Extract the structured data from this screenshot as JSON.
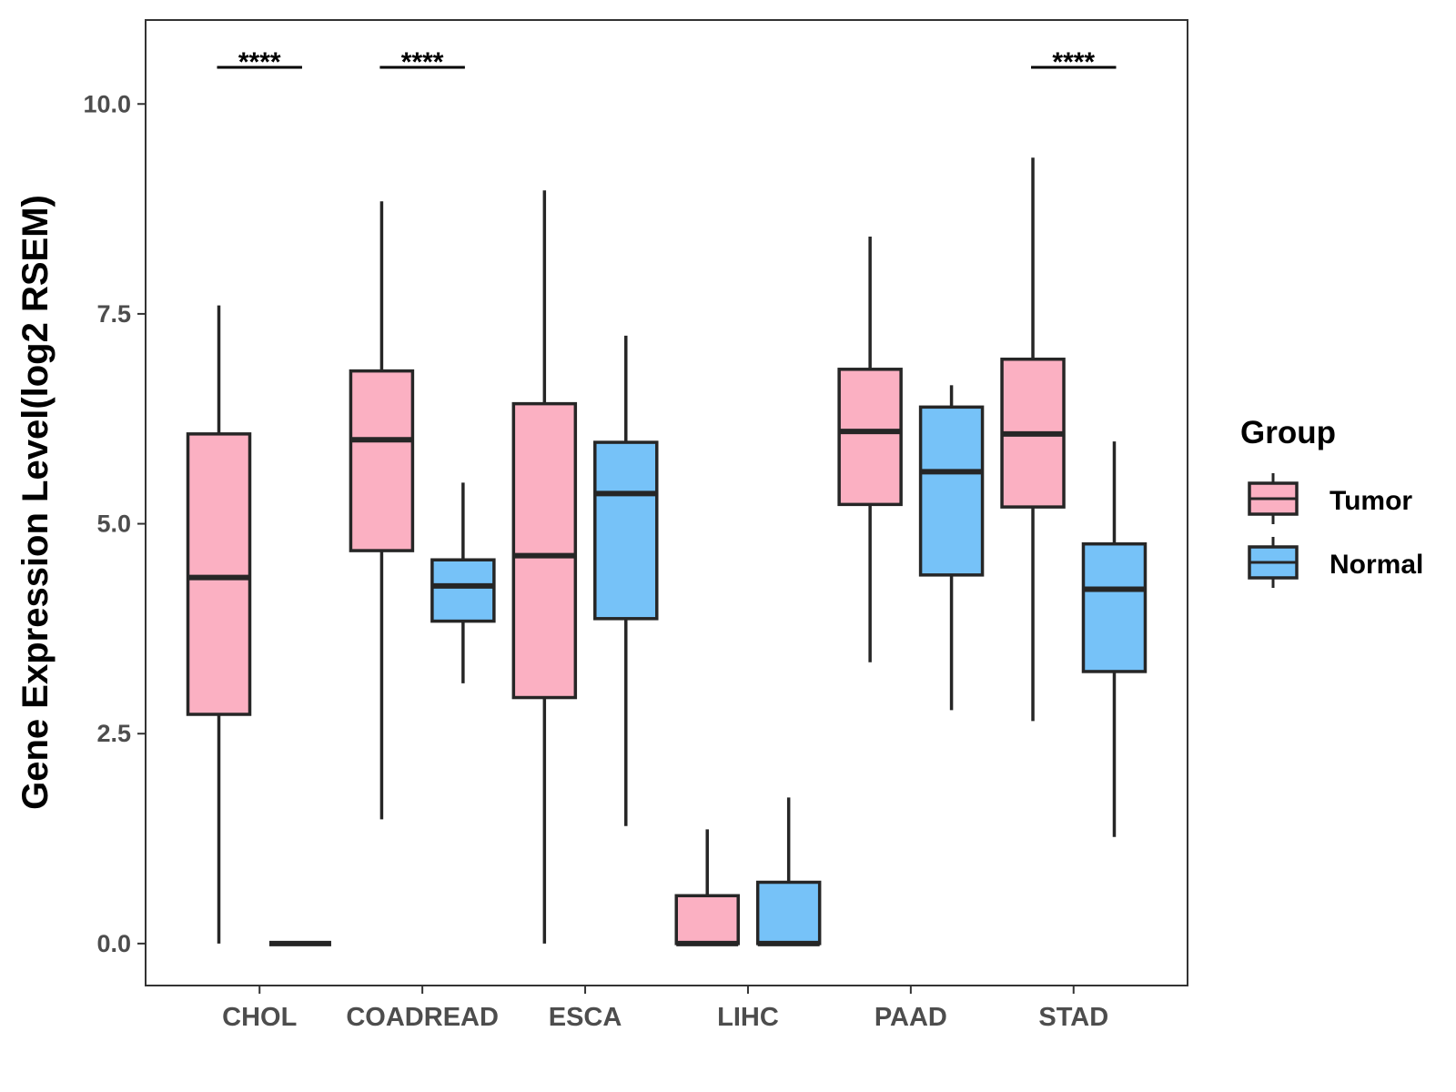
{
  "chart_data": {
    "type": "boxplot",
    "title": "",
    "xlabel": "",
    "ylabel": "Gene Expression Level(log2 RSEM)",
    "ylim": [
      -0.5,
      11.0
    ],
    "yticks": [
      0.0,
      2.5,
      5.0,
      7.5,
      10.0
    ],
    "ytick_labels": [
      "0.0",
      "2.5",
      "5.0",
      "7.5",
      "10.0"
    ],
    "categories": [
      "CHOL",
      "COADREAD",
      "ESCA",
      "LIHC",
      "PAAD",
      "STAD"
    ],
    "legend": {
      "title": "Group",
      "position": "right",
      "entries": [
        {
          "name": "Tumor",
          "color": "#fbb0c2"
        },
        {
          "name": "Normal",
          "color": "#76c2f8"
        }
      ]
    },
    "series": [
      {
        "name": "Tumor",
        "color": "#fbb0c2",
        "boxes": [
          {
            "category": "CHOL",
            "whisker_low": 0.0,
            "q1": 2.73,
            "median": 4.36,
            "q3": 6.07,
            "whisker_high": 7.6
          },
          {
            "category": "COADREAD",
            "whisker_low": 1.48,
            "q1": 4.68,
            "median": 6.0,
            "q3": 6.82,
            "whisker_high": 8.84
          },
          {
            "category": "ESCA",
            "whisker_low": 0.0,
            "q1": 2.93,
            "median": 4.62,
            "q3": 6.43,
            "whisker_high": 8.97
          },
          {
            "category": "LIHC",
            "whisker_low": 0.0,
            "q1": 0.0,
            "median": 0.0,
            "q3": 0.57,
            "whisker_high": 1.36
          },
          {
            "category": "PAAD",
            "whisker_low": 3.35,
            "q1": 5.23,
            "median": 6.1,
            "q3": 6.84,
            "whisker_high": 8.42
          },
          {
            "category": "STAD",
            "whisker_low": 2.65,
            "q1": 5.2,
            "median": 6.07,
            "q3": 6.96,
            "whisker_high": 9.36
          }
        ]
      },
      {
        "name": "Normal",
        "color": "#76c2f8",
        "boxes": [
          {
            "category": "CHOL",
            "whisker_low": 0.0,
            "q1": 0.0,
            "median": 0.0,
            "q3": 0.0,
            "whisker_high": 0.0
          },
          {
            "category": "COADREAD",
            "whisker_low": 3.1,
            "q1": 3.84,
            "median": 4.26,
            "q3": 4.57,
            "whisker_high": 5.49
          },
          {
            "category": "ESCA",
            "whisker_low": 1.4,
            "q1": 3.87,
            "median": 5.36,
            "q3": 5.97,
            "whisker_high": 7.24
          },
          {
            "category": "LIHC",
            "whisker_low": 0.0,
            "q1": 0.0,
            "median": 0.0,
            "q3": 0.73,
            "whisker_high": 1.74
          },
          {
            "category": "PAAD",
            "whisker_low": 2.78,
            "q1": 4.39,
            "median": 5.62,
            "q3": 6.39,
            "whisker_high": 6.65
          },
          {
            "category": "STAD",
            "whisker_low": 1.27,
            "q1": 3.24,
            "median": 4.22,
            "q3": 4.76,
            "whisker_high": 5.98
          }
        ]
      }
    ],
    "annotations": [
      {
        "category": "CHOL",
        "text": "****"
      },
      {
        "category": "COADREAD",
        "text": "****"
      },
      {
        "category": "STAD",
        "text": "****"
      }
    ]
  }
}
